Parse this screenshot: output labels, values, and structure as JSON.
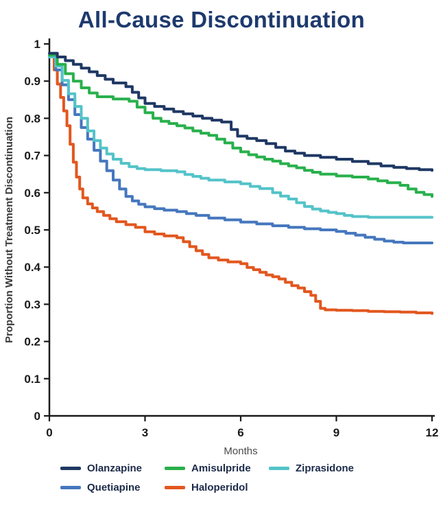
{
  "page": {
    "background": "#ffffff"
  },
  "chart_data": {
    "type": "line",
    "subtype": "kaplan-meier-step",
    "title": "All-Cause Discontinuation",
    "xlabel": "Months",
    "ylabel": "Proportion Without Treatment Discontinuation",
    "xlim": [
      0,
      12
    ],
    "ylim": [
      0,
      1
    ],
    "xticks": [
      0,
      3,
      6,
      9,
      12
    ],
    "yticks": [
      0,
      0.1,
      0.2,
      0.3,
      0.4,
      0.5,
      0.6,
      0.7,
      0.8,
      0.9,
      1
    ],
    "ytick_labels": [
      "0",
      "0.1",
      "0.2",
      "0.3",
      "0.4",
      "0.5",
      "0.6",
      "0.7",
      "0.8",
      "0.9",
      "1"
    ],
    "grid": false,
    "title_color": "#1e3a6e",
    "axis_color": "#1a1a1a",
    "legend": {
      "position": "bottom",
      "rows": [
        [
          "Olanzapine",
          "Amisulpride",
          "Ziprasidone"
        ],
        [
          "Quetiapine",
          "Haloperidol"
        ]
      ]
    },
    "series": [
      {
        "name": "Olanzapine",
        "color": "#1f3864",
        "points": [
          [
            0,
            0.975
          ],
          [
            0.25,
            0.965
          ],
          [
            0.5,
            0.955
          ],
          [
            0.75,
            0.945
          ],
          [
            1,
            0.935
          ],
          [
            1.25,
            0.925
          ],
          [
            1.5,
            0.915
          ],
          [
            1.75,
            0.905
          ],
          [
            2,
            0.895
          ],
          [
            2.4,
            0.885
          ],
          [
            2.6,
            0.87
          ],
          [
            2.8,
            0.855
          ],
          [
            3,
            0.84
          ],
          [
            3.3,
            0.832
          ],
          [
            3.6,
            0.825
          ],
          [
            3.9,
            0.818
          ],
          [
            4.2,
            0.812
          ],
          [
            4.5,
            0.806
          ],
          [
            4.8,
            0.8
          ],
          [
            5.1,
            0.795
          ],
          [
            5.4,
            0.79
          ],
          [
            5.7,
            0.77
          ],
          [
            5.9,
            0.752
          ],
          [
            6.2,
            0.746
          ],
          [
            6.5,
            0.74
          ],
          [
            6.8,
            0.732
          ],
          [
            7.1,
            0.722
          ],
          [
            7.4,
            0.712
          ],
          [
            7.7,
            0.706
          ],
          [
            8,
            0.7
          ],
          [
            8.5,
            0.695
          ],
          [
            9,
            0.69
          ],
          [
            9.5,
            0.684
          ],
          [
            10,
            0.678
          ],
          [
            10.4,
            0.672
          ],
          [
            10.8,
            0.668
          ],
          [
            11.2,
            0.665
          ],
          [
            11.6,
            0.662
          ],
          [
            12,
            0.66
          ]
        ]
      },
      {
        "name": "Amisulpride",
        "color": "#29b04c",
        "points": [
          [
            0,
            0.97
          ],
          [
            0.25,
            0.945
          ],
          [
            0.5,
            0.92
          ],
          [
            0.75,
            0.9
          ],
          [
            1,
            0.882
          ],
          [
            1.25,
            0.868
          ],
          [
            1.5,
            0.858
          ],
          [
            2,
            0.852
          ],
          [
            2.5,
            0.846
          ],
          [
            2.75,
            0.83
          ],
          [
            3,
            0.815
          ],
          [
            3.25,
            0.8
          ],
          [
            3.5,
            0.792
          ],
          [
            3.75,
            0.786
          ],
          [
            4,
            0.78
          ],
          [
            4.25,
            0.774
          ],
          [
            4.5,
            0.766
          ],
          [
            4.75,
            0.76
          ],
          [
            5,
            0.754
          ],
          [
            5.25,
            0.744
          ],
          [
            5.5,
            0.734
          ],
          [
            5.75,
            0.72
          ],
          [
            6,
            0.71
          ],
          [
            6.25,
            0.702
          ],
          [
            6.5,
            0.696
          ],
          [
            6.75,
            0.69
          ],
          [
            7,
            0.685
          ],
          [
            7.25,
            0.678
          ],
          [
            7.5,
            0.672
          ],
          [
            7.75,
            0.667
          ],
          [
            8,
            0.66
          ],
          [
            8.25,
            0.655
          ],
          [
            8.5,
            0.65
          ],
          [
            9,
            0.645
          ],
          [
            9.5,
            0.642
          ],
          [
            10,
            0.637
          ],
          [
            10.3,
            0.632
          ],
          [
            10.6,
            0.627
          ],
          [
            11,
            0.62
          ],
          [
            11.25,
            0.61
          ],
          [
            11.5,
            0.601
          ],
          [
            11.75,
            0.595
          ],
          [
            12,
            0.59
          ]
        ]
      },
      {
        "name": "Ziprasidone",
        "color": "#53c3c9",
        "points": [
          [
            0,
            0.965
          ],
          [
            0.2,
            0.94
          ],
          [
            0.4,
            0.902
          ],
          [
            0.6,
            0.866
          ],
          [
            0.8,
            0.832
          ],
          [
            1,
            0.8
          ],
          [
            1.2,
            0.766
          ],
          [
            1.4,
            0.74
          ],
          [
            1.6,
            0.72
          ],
          [
            1.8,
            0.704
          ],
          [
            2,
            0.69
          ],
          [
            2.25,
            0.679
          ],
          [
            2.5,
            0.67
          ],
          [
            2.75,
            0.665
          ],
          [
            3,
            0.662
          ],
          [
            3.5,
            0.659
          ],
          [
            4,
            0.656
          ],
          [
            4.25,
            0.649
          ],
          [
            4.5,
            0.644
          ],
          [
            4.75,
            0.639
          ],
          [
            5,
            0.634
          ],
          [
            5.5,
            0.629
          ],
          [
            6,
            0.624
          ],
          [
            6.3,
            0.617
          ],
          [
            6.6,
            0.611
          ],
          [
            7,
            0.6
          ],
          [
            7.25,
            0.591
          ],
          [
            7.5,
            0.583
          ],
          [
            7.75,
            0.573
          ],
          [
            8,
            0.563
          ],
          [
            8.25,
            0.556
          ],
          [
            8.5,
            0.551
          ],
          [
            8.75,
            0.547
          ],
          [
            9,
            0.544
          ],
          [
            9.25,
            0.539
          ],
          [
            9.5,
            0.536
          ],
          [
            10,
            0.534
          ],
          [
            12,
            0.534
          ]
        ]
      },
      {
        "name": "Quetiapine",
        "color": "#4577be",
        "points": [
          [
            0,
            0.965
          ],
          [
            0.2,
            0.93
          ],
          [
            0.4,
            0.89
          ],
          [
            0.6,
            0.85
          ],
          [
            0.8,
            0.81
          ],
          [
            1,
            0.775
          ],
          [
            1.2,
            0.744
          ],
          [
            1.4,
            0.714
          ],
          [
            1.6,
            0.685
          ],
          [
            1.8,
            0.659
          ],
          [
            2,
            0.634
          ],
          [
            2.2,
            0.61
          ],
          [
            2.4,
            0.59
          ],
          [
            2.6,
            0.578
          ],
          [
            2.8,
            0.569
          ],
          [
            3,
            0.562
          ],
          [
            3.3,
            0.557
          ],
          [
            3.6,
            0.553
          ],
          [
            4,
            0.549
          ],
          [
            4.3,
            0.544
          ],
          [
            4.6,
            0.539
          ],
          [
            5,
            0.532
          ],
          [
            5.5,
            0.527
          ],
          [
            6,
            0.521
          ],
          [
            6.5,
            0.516
          ],
          [
            7,
            0.511
          ],
          [
            7.5,
            0.507
          ],
          [
            8,
            0.503
          ],
          [
            8.5,
            0.5
          ],
          [
            9,
            0.496
          ],
          [
            9.3,
            0.491
          ],
          [
            9.6,
            0.486
          ],
          [
            9.9,
            0.48
          ],
          [
            10.2,
            0.475
          ],
          [
            10.5,
            0.47
          ],
          [
            10.8,
            0.467
          ],
          [
            11.1,
            0.465
          ],
          [
            12,
            0.465
          ]
        ]
      },
      {
        "name": "Haloperidol",
        "color": "#e2571f",
        "points": [
          [
            0,
            0.965
          ],
          [
            0.15,
            0.93
          ],
          [
            0.25,
            0.892
          ],
          [
            0.35,
            0.856
          ],
          [
            0.45,
            0.82
          ],
          [
            0.55,
            0.78
          ],
          [
            0.65,
            0.73
          ],
          [
            0.75,
            0.682
          ],
          [
            0.85,
            0.642
          ],
          [
            0.95,
            0.61
          ],
          [
            1.05,
            0.586
          ],
          [
            1.2,
            0.57
          ],
          [
            1.35,
            0.559
          ],
          [
            1.5,
            0.549
          ],
          [
            1.7,
            0.539
          ],
          [
            1.9,
            0.53
          ],
          [
            2.1,
            0.522
          ],
          [
            2.4,
            0.514
          ],
          [
            2.7,
            0.507
          ],
          [
            3,
            0.495
          ],
          [
            3.3,
            0.489
          ],
          [
            3.6,
            0.484
          ],
          [
            4,
            0.479
          ],
          [
            4.2,
            0.468
          ],
          [
            4.4,
            0.455
          ],
          [
            4.6,
            0.444
          ],
          [
            4.8,
            0.434
          ],
          [
            5,
            0.425
          ],
          [
            5.3,
            0.419
          ],
          [
            5.6,
            0.414
          ],
          [
            6,
            0.409
          ],
          [
            6.2,
            0.399
          ],
          [
            6.4,
            0.393
          ],
          [
            6.6,
            0.386
          ],
          [
            6.8,
            0.379
          ],
          [
            7,
            0.374
          ],
          [
            7.2,
            0.368
          ],
          [
            7.4,
            0.359
          ],
          [
            7.6,
            0.35
          ],
          [
            7.8,
            0.344
          ],
          [
            8,
            0.334
          ],
          [
            8.2,
            0.324
          ],
          [
            8.35,
            0.308
          ],
          [
            8.5,
            0.289
          ],
          [
            8.65,
            0.285
          ],
          [
            9,
            0.284
          ],
          [
            9.5,
            0.283
          ],
          [
            10,
            0.281
          ],
          [
            10.5,
            0.28
          ],
          [
            11,
            0.279
          ],
          [
            11.5,
            0.277
          ],
          [
            12,
            0.275
          ]
        ]
      }
    ]
  }
}
